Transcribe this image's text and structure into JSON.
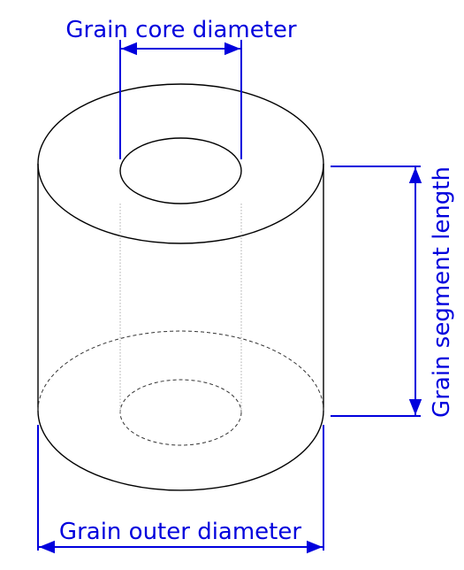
{
  "labels": {
    "core_diameter": "Grain core diameter",
    "segment_length": "Grain segment length",
    "outer_diameter": "Grain outer diameter"
  },
  "colors": {
    "dimension": "#0000dd",
    "outline": "#000000",
    "hidden": "#888888",
    "background": "#ffffff"
  }
}
